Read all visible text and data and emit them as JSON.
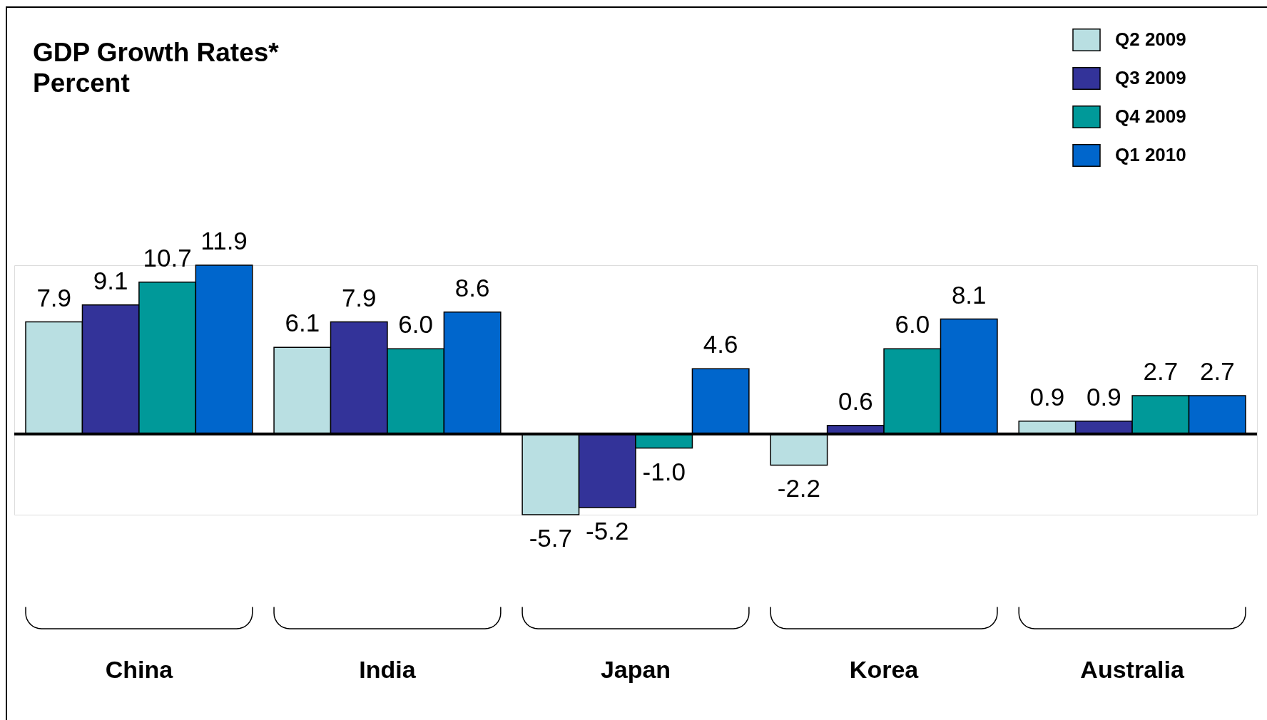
{
  "chart_data": {
    "type": "bar",
    "title": "GDP Growth Rates*",
    "subtitle": "Percent",
    "categories": [
      "China",
      "India",
      "Japan",
      "Korea",
      "Australia"
    ],
    "series": [
      {
        "name": "Q2 2009",
        "color": "#b9dfe2",
        "values": [
          7.9,
          6.1,
          -5.7,
          -2.2,
          0.9
        ],
        "value_labels": [
          "7.9",
          "6.1",
          "-5.7",
          "-2.2",
          "0.9"
        ]
      },
      {
        "name": "Q3 2009",
        "color": "#333399",
        "values": [
          9.1,
          7.9,
          -5.2,
          0.6,
          0.9
        ],
        "value_labels": [
          "9.1",
          "7.9",
          "-5.2",
          "0.6",
          "0.9"
        ]
      },
      {
        "name": "Q4 2009",
        "color": "#009999",
        "values": [
          10.7,
          6.0,
          -1.0,
          6.0,
          2.7
        ],
        "value_labels": [
          "10.7",
          "6.0",
          "-1.0",
          "6.0",
          "2.7"
        ]
      },
      {
        "name": "Q1 2010",
        "color": "#0066cc",
        "values": [
          11.9,
          8.6,
          4.6,
          8.1,
          2.7
        ],
        "value_labels": [
          "11.9",
          "8.6",
          "4.6",
          "8.1",
          "2.7"
        ]
      }
    ],
    "legend": "top right",
    "tick_labels": "x",
    "ref_lines": [
      {
        "axis": "y",
        "value": 0,
        "color": "#000000"
      }
    ]
  }
}
